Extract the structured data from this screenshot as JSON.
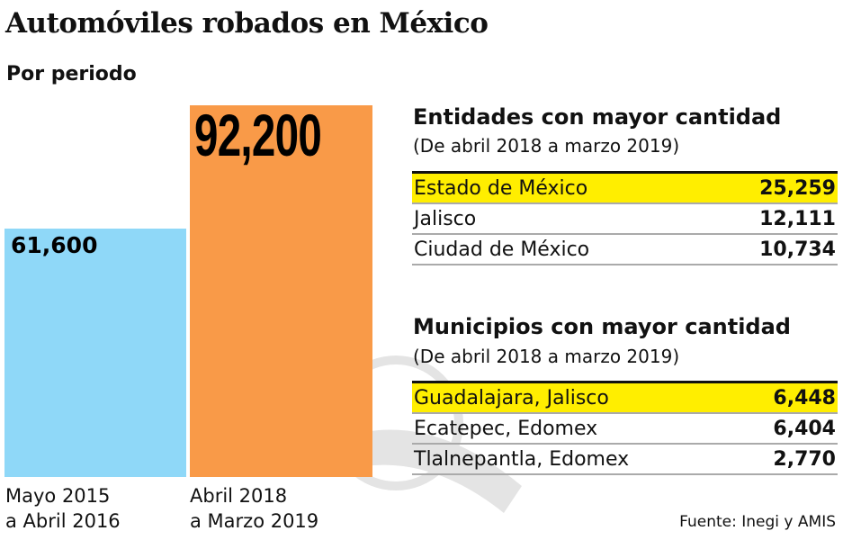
{
  "title": "Automóviles robados en México",
  "subtitle": "Por periodo",
  "chart_data": {
    "type": "bar",
    "categories": [
      "Mayo 2015\na Abril 2016",
      "Abril 2018\na Marzo 2019"
    ],
    "values": [
      61600,
      92200
    ],
    "value_labels": [
      "61,600",
      "92,200"
    ],
    "colors": [
      "#8fd8f8",
      "#f99a48"
    ],
    "ylim": [
      0,
      92200
    ],
    "grid": false
  },
  "entidades": {
    "heading": "Entidades con mayor cantidad",
    "period": "(De abril 2018 a marzo 2019)",
    "rows": [
      {
        "name": "Estado de México",
        "value": "25,259",
        "highlight": true
      },
      {
        "name": "Jalisco",
        "value": "12,111",
        "highlight": false
      },
      {
        "name": "Ciudad de México",
        "value": "10,734",
        "highlight": false
      }
    ]
  },
  "municipios": {
    "heading": "Municipios con mayor cantidad",
    "period": "(De abril 2018 a marzo 2019)",
    "rows": [
      {
        "name": "Guadalajara, Jalisco",
        "value": "6,448",
        "highlight": true
      },
      {
        "name": "Ecatepec, Edomex",
        "value": "6,404",
        "highlight": false
      },
      {
        "name": "Tlalnepantla, Edomex",
        "value": "2,770",
        "highlight": false
      }
    ]
  },
  "source": "Fuente: Inegi y AMIS",
  "highlight_color": "#ffee00"
}
